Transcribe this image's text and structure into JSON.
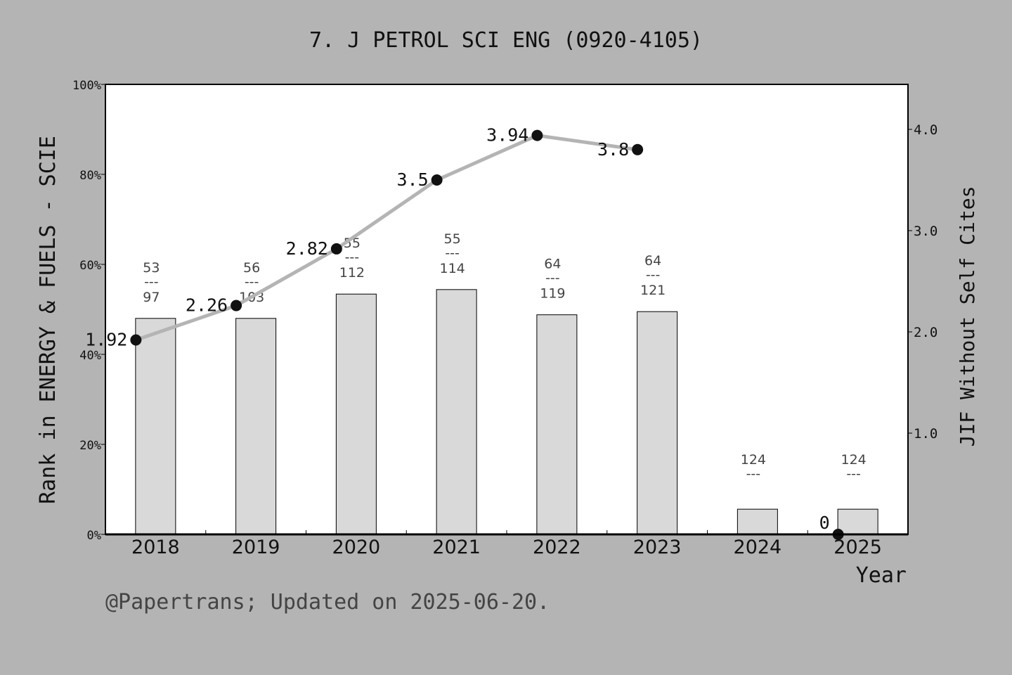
{
  "chart_data": {
    "type": "bar+line",
    "title": "7. J PETROL SCI ENG (0920-4105)",
    "xlabel": "Year",
    "ylabel_left": "Rank in ENERGY & FUELS - SCIE",
    "ylabel_right": "JIF Without Self Cites",
    "footer": "@Papertrans; Updated on 2025-06-20.",
    "categories": [
      "2018",
      "2019",
      "2020",
      "2021",
      "2022",
      "2023",
      "2024",
      "2025"
    ],
    "left_axis": {
      "ylim": [
        0,
        100
      ],
      "ticks": [
        "0%",
        "20%",
        "40%",
        "60%",
        "80%",
        "100%"
      ]
    },
    "right_axis": {
      "ylim": [
        0,
        4.44
      ],
      "ticks": [
        "1.0",
        "2.0",
        "3.0",
        "4.0"
      ]
    },
    "bars": {
      "values_percent": [
        48.0,
        48.0,
        53.4,
        54.4,
        48.8,
        49.5,
        5.6,
        5.6
      ],
      "rank_labels": [
        {
          "top": "53",
          "mid": "---",
          "bottom": "97"
        },
        {
          "top": "56",
          "mid": "---",
          "bottom": "103"
        },
        {
          "top": "55",
          "mid": "---",
          "bottom": "112"
        },
        {
          "top": "55",
          "mid": "---",
          "bottom": "114"
        },
        {
          "top": "64",
          "mid": "---",
          "bottom": "119"
        },
        {
          "top": "64",
          "mid": "---",
          "bottom": "121"
        },
        {
          "top": "124",
          "mid": "---",
          "bottom": ""
        },
        {
          "top": "124",
          "mid": "---",
          "bottom": ""
        }
      ],
      "color": "#d9d9d9"
    },
    "line": {
      "values": [
        1.92,
        2.26,
        2.82,
        3.5,
        3.94,
        3.8,
        null,
        0
      ],
      "labels": [
        "1.92",
        "2.26",
        "2.82",
        "3.5",
        "3.94",
        "3.8",
        "",
        "0"
      ],
      "line_color": "#b4b4b4",
      "marker_color": "#111111"
    },
    "grid": false
  }
}
